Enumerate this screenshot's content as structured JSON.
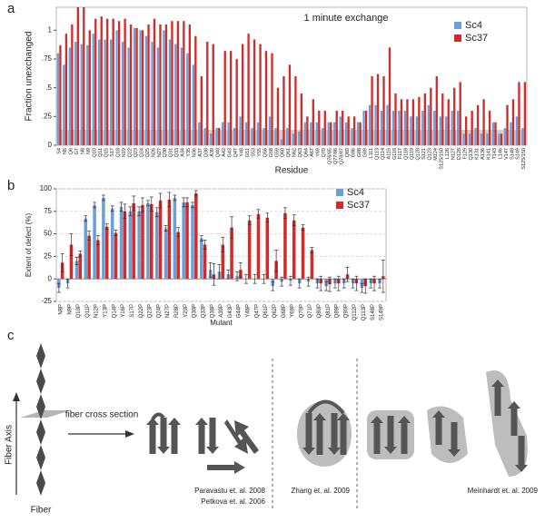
{
  "panels": [
    "a",
    "b",
    "c"
  ],
  "chart_data": [
    {
      "type": "bar",
      "title": "1 minute exchange",
      "ylabel": "Fraction unexchanged",
      "xlabel": "Residue",
      "categories": [
        "S4",
        "N5",
        "Q6",
        "G7",
        "N8",
        "N9",
        "Q10",
        "Q11",
        "Q15",
        "S17",
        "Q18",
        "N19",
        "Q22",
        "Q23",
        "Q24",
        "Q25",
        "N26",
        "N27",
        "Q30",
        "Q31",
        "Q33",
        "A34",
        "Y35",
        "N36",
        "A37",
        "Q38",
        "A39",
        "Q40",
        "A42",
        "G43",
        "Q47",
        "Y48",
        "G51",
        "S53",
        "Y55",
        "Q56",
        "G58",
        "G59",
        "Q60",
        "Q61",
        "N62",
        "Q63",
        "Q64",
        "A67",
        "Y69",
        "Q70",
        "Q76/85",
        "Q77/86",
        "Q78/87",
        "Q80",
        "G86",
        "G88",
        "G89",
        "L111",
        "Q113",
        "Q114",
        "A115",
        "G116",
        "F117",
        "Q118",
        "Q119",
        "Q120",
        "S121",
        "Q123",
        "M124",
        "S125/150",
        "L126",
        "N127",
        "D128",
        "F129",
        "Q130",
        "K131",
        "A136",
        "K141",
        "T143",
        "L146",
        "V147",
        "S148",
        "S149",
        "S125/150"
      ],
      "series": [
        {
          "name": "Sc4",
          "color": "#6b9fd6",
          "values": [
            0.8,
            0.7,
            0.85,
            0.9,
            0.88,
            0.87,
            0.97,
            0.92,
            0.92,
            0.92,
            1.0,
            0.9,
            0.85,
            1.02,
            1.0,
            0.95,
            0.9,
            0.85,
            1.0,
            0.92,
            0.88,
            0.85,
            0.8,
            0.7,
            0.2,
            0.15,
            0.1,
            0.15,
            0.2,
            0.2,
            0.15,
            0.25,
            0.2,
            0.15,
            0.2,
            0.15,
            0.25,
            0.15,
            0.05,
            0.15,
            0.1,
            0.12,
            0.2,
            0.2,
            0.2,
            0.15,
            0.2,
            0.2,
            0.25,
            0.2,
            0.15,
            0.2,
            0.3,
            0.35,
            0.35,
            0.3,
            0.35,
            0.3,
            0.3,
            0.3,
            0.25,
            0.25,
            0.3,
            0.35,
            0.3,
            0.25,
            0.25,
            0.3,
            0.3,
            0.1,
            0.1,
            0.15,
            0.1,
            0.1,
            0.2,
            0.1,
            0.15,
            0.2,
            0.25,
            0.15
          ]
        },
        {
          "name": "Sc37",
          "color": "#d42a2a",
          "values": [
            0.87,
            0.97,
            1.05,
            1.2,
            1.2,
            1.0,
            1.1,
            1.12,
            1.1,
            1.1,
            1.08,
            1.1,
            1.05,
            1.02,
            1.0,
            1.05,
            1.1,
            1.05,
            1.05,
            1.08,
            1.08,
            1.08,
            1.05,
            0.95,
            0.6,
            0.9,
            0.88,
            0.15,
            0.82,
            0.82,
            0.75,
            0.88,
            0.97,
            0.92,
            0.88,
            0.82,
            0.8,
            0.5,
            0.6,
            0.7,
            0.6,
            0.45,
            0.25,
            0.4,
            0.3,
            0.3,
            0.2,
            0.3,
            0.3,
            0.25,
            0.25,
            0.2,
            0.3,
            0.6,
            0.62,
            0.6,
            0.85,
            0.45,
            0.4,
            0.4,
            0.4,
            0.42,
            0.45,
            0.5,
            0.6,
            0.45,
            0.4,
            0.5,
            0.55,
            0.25,
            0.3,
            0.35,
            0.4,
            0.3,
            0.2,
            0.1,
            0.35,
            0.4,
            0.55,
            0.55
          ]
        }
      ],
      "ylim": [
        0,
        1.2
      ],
      "yticks": [
        0,
        {
          "value": 0.25,
          "label": ".25"
        },
        {
          "value": 0.5,
          "label": ".5"
        },
        {
          "value": 0.75,
          "label": ".75"
        },
        1
      ],
      "legend": "upper right"
    },
    {
      "type": "bar",
      "ylabel": "Extent of defect (%)",
      "xlabel": "Mutant",
      "categories": [
        "N8P",
        "N9P",
        "Q10P",
        "Q11P",
        "N12P",
        "Y13P",
        "Q14P",
        "Y16P",
        "S17P",
        "Q22P",
        "Q23P",
        "Q24P",
        "N27P",
        "R28P",
        "Y29P",
        "Q30P",
        "Q33P",
        "Q38P",
        "A39P",
        "G43P",
        "G44P",
        "Y46P",
        "Q47P",
        "Q61P",
        "Q62P",
        "G68P",
        "Y69P",
        "Q70P",
        "Q71P",
        "Q80P",
        "Q81P",
        "Q89P",
        "Q90P",
        "Q112P",
        "Q113P",
        "S148P",
        "S149P"
      ],
      "series": [
        {
          "name": "Sc4",
          "color": "#6b9fd6",
          "values": [
            -10,
            -5,
            20,
            67,
            82,
            90,
            78,
            80,
            75,
            75,
            84,
            74,
            56,
            90,
            85,
            82,
            45,
            10,
            8,
            5,
            3,
            0,
            0,
            0,
            -8,
            -3,
            -2,
            -5,
            -3,
            -5,
            -8,
            -5,
            -5,
            -5,
            -10,
            -5,
            -5
          ],
          "errors": [
            5,
            5,
            4,
            3,
            3,
            3,
            3,
            5,
            5,
            5,
            3,
            5,
            3,
            3,
            5,
            3,
            3,
            8,
            8,
            5,
            5,
            5,
            5,
            5,
            5,
            5,
            5,
            5,
            5,
            5,
            5,
            5,
            5,
            5,
            5,
            5,
            5
          ]
        },
        {
          "name": "Sc37",
          "color": "#d42a2a",
          "values": [
            18,
            38,
            28,
            48,
            43,
            58,
            51,
            75,
            84,
            82,
            83,
            87,
            88,
            52,
            85,
            95,
            38,
            5,
            38,
            57,
            10,
            65,
            72,
            68,
            20,
            73,
            65,
            57,
            32,
            -5,
            -6,
            -5,
            5,
            -5,
            -8,
            -5,
            3
          ],
          "errors": [
            10,
            12,
            3,
            5,
            5,
            3,
            3,
            8,
            8,
            8,
            8,
            8,
            8,
            5,
            5,
            3,
            5,
            12,
            8,
            12,
            8,
            5,
            5,
            5,
            12,
            6,
            6,
            3,
            3,
            8,
            8,
            8,
            8,
            8,
            8,
            8,
            18
          ]
        }
      ],
      "ylim": [
        -25,
        100
      ],
      "yticks": [
        -25,
        0,
        25,
        50,
        75,
        100
      ],
      "grid": true,
      "legend": "upper right"
    }
  ],
  "diagram": {
    "axis_label": "Fiber Axis",
    "arrow_label": "fiber cross section",
    "fiber_label": "Fiber",
    "refs": [
      "Paravastu et. al. 2008",
      "Petkova et. al. 2006",
      "Zhang et. al. 2009",
      "Meinhardt et. al. 2009"
    ]
  }
}
